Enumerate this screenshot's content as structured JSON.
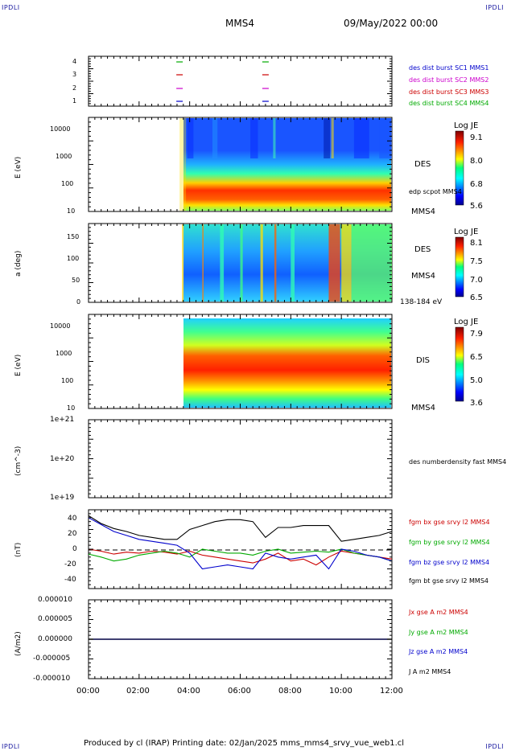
{
  "corners": {
    "tl": "IPDLI",
    "tr": "IPDLI",
    "bl": "IPDLI",
    "br": "IPDLI"
  },
  "header": {
    "spacecraft": "MMS4",
    "datetime": "09/May/2022 00:00"
  },
  "footer": {
    "text": "Produced by cl (IRAP)   Printing date: 02/Jan/2025   mms_mms4_srvy_vue_web1.cl"
  },
  "colors": {
    "mms1": "#0000cc",
    "mms2": "#cc00cc",
    "mms3": "#cc0000",
    "mms4": "#00aa00",
    "black": "#000000"
  },
  "panels": {
    "availability": {
      "yticks": [
        "4",
        "3",
        "2",
        "1"
      ],
      "legend": [
        "des dist burst SC1 MMS1",
        "des dist burst SC2 MMS2",
        "des dist burst SC3 MMS3",
        "des dist burst SC4 MMS4"
      ],
      "bursts_hours": [
        3.6,
        7.0
      ]
    },
    "des_energy": {
      "ylabel": "E (eV)",
      "yticks": [
        "10000",
        "1000",
        "100",
        "10"
      ],
      "side_label": "DES",
      "side_label2": "edp scpot MMS4",
      "spacecraft_tag": "MMS4",
      "colorbar": {
        "title": "Log JE",
        "ticks": [
          "9.1",
          "8.0",
          "6.8",
          "5.6"
        ]
      }
    },
    "des_pitch": {
      "ylabel": "a (deg)",
      "yticks": [
        "150",
        "100",
        "50",
        "0"
      ],
      "side_label": "DES",
      "spacecraft_tag": "MMS4",
      "energy_range": "138-184 eV",
      "colorbar": {
        "title": "Log JE",
        "ticks": [
          "8.1",
          "7.5",
          "7.0",
          "6.5"
        ]
      }
    },
    "dis_energy": {
      "ylabel": "E (eV)",
      "yticks": [
        "10000",
        "1000",
        "100",
        "10"
      ],
      "side_label": "DIS",
      "spacecraft_tag": "MMS4",
      "colorbar": {
        "title": "Log JE",
        "ticks": [
          "7.9",
          "6.5",
          "5.0",
          "3.6"
        ]
      }
    },
    "density": {
      "ylabel": "(cm^-3)",
      "yticks": [
        "1e+21",
        "1e+20",
        "1e+19"
      ],
      "legend": "des numberdensity fast MMS4"
    },
    "magnetic": {
      "ylabel": "(nT)",
      "yticks": [
        "40",
        "20",
        "0",
        "-20",
        "-40"
      ],
      "legend": [
        "fgm bx gse srvy l2 MMS4",
        "fgm by gse srvy l2 MMS4",
        "fgm bz gse srvy l2 MMS4",
        "fgm bt gse srvy l2 MMS4"
      ]
    },
    "current": {
      "ylabel": "(A/m2)",
      "yticks": [
        "0.000010",
        "0.000005",
        "0.000000",
        "-0.000005",
        "-0.000010"
      ],
      "legend": [
        "Jx gse A m2 MMS4",
        "Jy gse A m2 MMS4",
        "Jz gse A m2 MMS4",
        "J A m2 MMS4"
      ]
    }
  },
  "xaxis": {
    "ticks": [
      "00:00",
      "02:00",
      "04:00",
      "06:00",
      "08:00",
      "10:00",
      "12:00"
    ]
  },
  "chart_data": [
    {
      "type": "line",
      "title": "",
      "xlabel": "",
      "ylabel": "(nT)",
      "x": [
        "00:00",
        "00:30",
        "01:00",
        "01:30",
        "02:00",
        "02:30",
        "03:00",
        "03:30",
        "04:00",
        "04:30",
        "05:00",
        "05:30",
        "06:00",
        "06:30",
        "07:00",
        "07:30",
        "08:00",
        "08:30",
        "09:00",
        "09:30",
        "10:00",
        "10:30",
        "11:00",
        "11:30",
        "12:00"
      ],
      "ylim": [
        -40,
        40
      ],
      "series": [
        {
          "name": "fgm bx gse srvy l2 MMS4",
          "values": [
            0,
            -2,
            -5,
            -3,
            -4,
            -2,
            -3,
            -5,
            -2,
            -6,
            -8,
            -10,
            -12,
            -14,
            -10,
            -4,
            -12,
            -10,
            -16,
            -8,
            -2,
            -4,
            -6,
            -8,
            -10
          ]
        },
        {
          "name": "fgm by gse srvy l2 MMS4",
          "values": [
            -5,
            -8,
            -12,
            -10,
            -6,
            -4,
            -2,
            -4,
            -8,
            0,
            -2,
            -4,
            -4,
            -6,
            -2,
            0,
            -4,
            -3,
            -2,
            -3,
            0,
            -4,
            -6,
            -8,
            -12
          ]
        },
        {
          "name": "fgm bz gse srvy l2 MMS4",
          "values": [
            32,
            25,
            18,
            14,
            10,
            8,
            6,
            4,
            -4,
            -20,
            -18,
            -16,
            -18,
            -20,
            -4,
            -8,
            -10,
            -8,
            -6,
            -20,
            0,
            -2,
            -6,
            -8,
            -12
          ]
        },
        {
          "name": "fgm bt gse srvy l2 MMS4",
          "values": [
            34,
            26,
            21,
            18,
            14,
            12,
            10,
            10,
            20,
            24,
            28,
            30,
            30,
            28,
            12,
            22,
            22,
            24,
            24,
            24,
            8,
            10,
            12,
            14,
            18
          ]
        }
      ]
    },
    {
      "type": "line",
      "title": "",
      "xlabel": "",
      "ylabel": "(A/m2)",
      "x": [
        "00:00",
        "02:00",
        "04:00",
        "06:00",
        "08:00",
        "10:00",
        "12:00"
      ],
      "ylim": [
        -1e-05,
        1e-05
      ],
      "series": [
        {
          "name": "Jx gse A m2 MMS4",
          "values": [
            0,
            0,
            0,
            0,
            0,
            0,
            0
          ]
        },
        {
          "name": "Jy gse A m2 MMS4",
          "values": [
            0,
            0,
            0,
            0,
            0,
            0,
            0
          ]
        },
        {
          "name": "Jz gse A m2 MMS4",
          "values": [
            0,
            0,
            0,
            0,
            0,
            0,
            0
          ]
        },
        {
          "name": "J A m2 MMS4",
          "values": [
            0,
            0,
            0,
            0,
            0,
            0,
            0
          ]
        }
      ]
    }
  ]
}
